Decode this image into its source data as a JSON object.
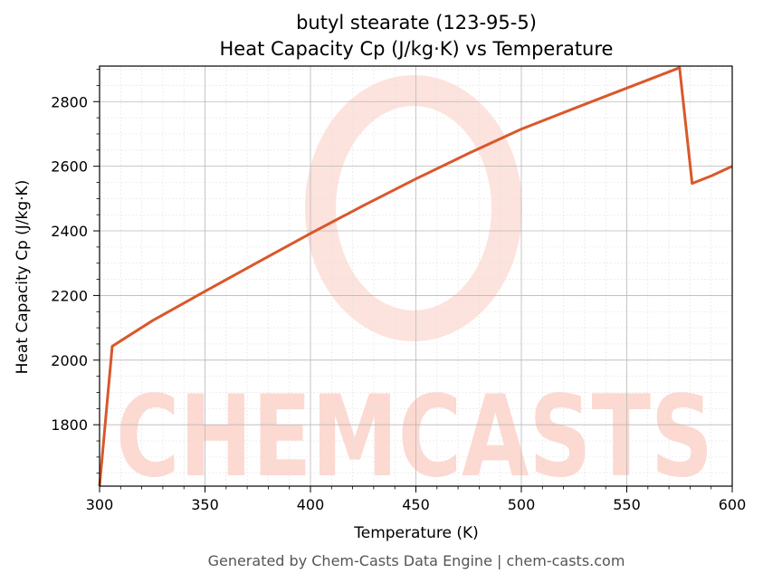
{
  "chart_data": {
    "type": "line",
    "title_line1": "butyl stearate (123-95-5)",
    "title_line2": "Heat Capacity Cp (J/kg·K) vs Temperature",
    "xlabel": "Temperature (K)",
    "ylabel": "Heat Capacity Cp (J/kg·K)",
    "xlim": [
      300,
      600
    ],
    "ylim": [
      1610,
      2910
    ],
    "x_ticks": [
      300,
      350,
      400,
      450,
      500,
      550,
      600
    ],
    "y_ticks": [
      1800,
      2000,
      2200,
      2400,
      2600,
      2800
    ],
    "x_tick_labels": [
      "300",
      "350",
      "400",
      "450",
      "500",
      "550",
      "600"
    ],
    "y_tick_labels": [
      "1800",
      "2000",
      "2200",
      "2400",
      "2600",
      "2800"
    ],
    "grid": true,
    "series": [
      {
        "color": "#d9582b",
        "x": [
          300,
          306,
          325,
          350,
          375,
          400,
          425,
          450,
          475,
          500,
          525,
          550,
          575,
          581,
          590,
          600
        ],
        "y": [
          1610,
          2043,
          2122,
          2213,
          2303,
          2392,
          2478,
          2561,
          2640,
          2715,
          2779,
          2842,
          2905,
          2547,
          2570,
          2600
        ]
      }
    ]
  },
  "watermark": {
    "text": "CHEMCASTS",
    "color": "#fcd9d1"
  },
  "footer": {
    "text": "Generated by Chem-Casts Data Engine | chem-casts.com"
  }
}
